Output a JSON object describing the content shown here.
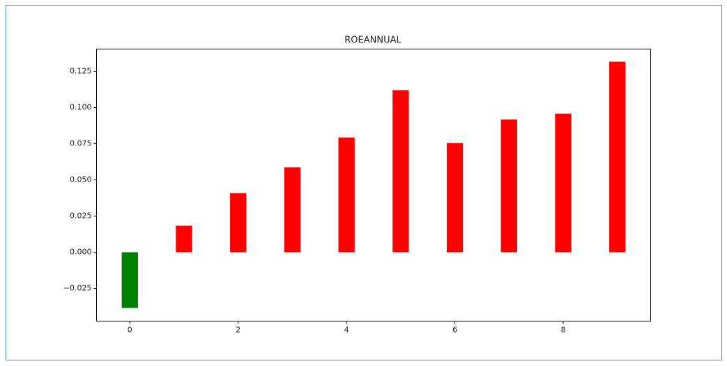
{
  "chart_data": {
    "type": "bar",
    "title": "ROEANNUAL",
    "x": [
      0,
      1,
      2,
      3,
      4,
      5,
      6,
      7,
      8,
      9
    ],
    "values": [
      -0.0385,
      0.0183,
      0.0409,
      0.0587,
      0.0793,
      0.112,
      0.0755,
      0.0918,
      0.0957,
      0.1317
    ],
    "colors": [
      "#008000",
      "#ff0000",
      "#ff0000",
      "#ff0000",
      "#ff0000",
      "#ff0000",
      "#ff0000",
      "#ff0000",
      "#ff0000",
      "#ff0000"
    ],
    "xlim": [
      -0.615,
      9.615
    ],
    "xticks": [
      0,
      2,
      4,
      6,
      8
    ],
    "ylim": [
      -0.0476,
      0.1404
    ],
    "yticks": [
      {
        "value": -0.025,
        "label": "−0.025"
      },
      {
        "value": 0,
        "label": "0.000"
      },
      {
        "value": 0.025,
        "label": "0.025"
      },
      {
        "value": 0.05,
        "label": "0.050"
      },
      {
        "value": 0.075,
        "label": "0.075"
      },
      {
        "value": 0.1,
        "label": "0.100"
      },
      {
        "value": 0.125,
        "label": "0.125"
      }
    ],
    "grid": false
  }
}
